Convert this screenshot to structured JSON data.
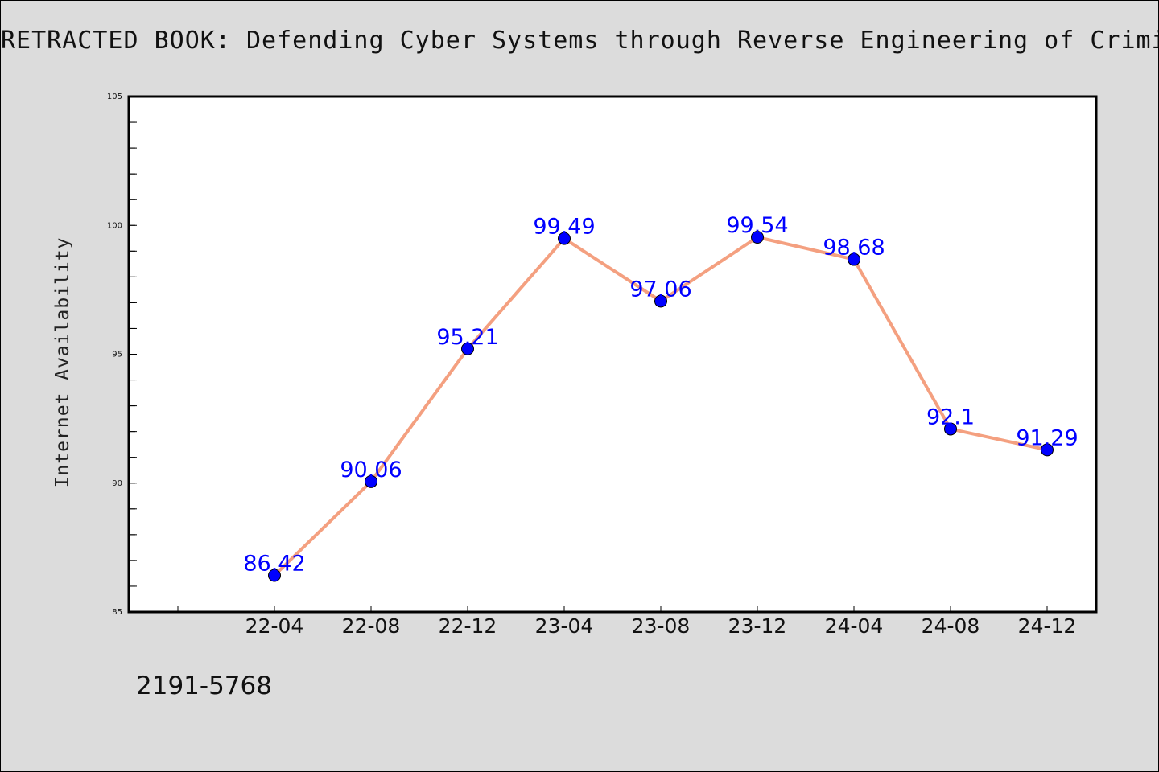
{
  "chart_data": {
    "type": "line",
    "title": "RETRACTED BOOK: Defending Cyber Systems through Reverse Engineering of Criminal",
    "xlabel": "",
    "ylabel": "Internet Availability",
    "categories": [
      "22-04",
      "22-08",
      "22-12",
      "23-04",
      "23-08",
      "23-12",
      "24-04",
      "24-08",
      "24-12"
    ],
    "series": [
      {
        "values": [
          86.42,
          90.06,
          95.21,
          99.49,
          97.06,
          99.54,
          98.68,
          92.1,
          91.29
        ],
        "labels": [
          "86.42",
          "90.06",
          "95.21",
          "99.49",
          "97.06",
          "99.54",
          "98.68",
          "92.1",
          "91.29"
        ]
      }
    ],
    "ylim": [
      85,
      105
    ],
    "yticks": [
      "85",
      "90",
      "95",
      "100",
      "105"
    ],
    "grid": false,
    "legend": "none",
    "colors": {
      "line": "#f4a080",
      "marker": "#0000ff",
      "data_label": "#0000ff",
      "background": "#dcdcdc",
      "plot_background": "#ffffff"
    }
  },
  "footer": {
    "id_text": "2191-5768"
  }
}
